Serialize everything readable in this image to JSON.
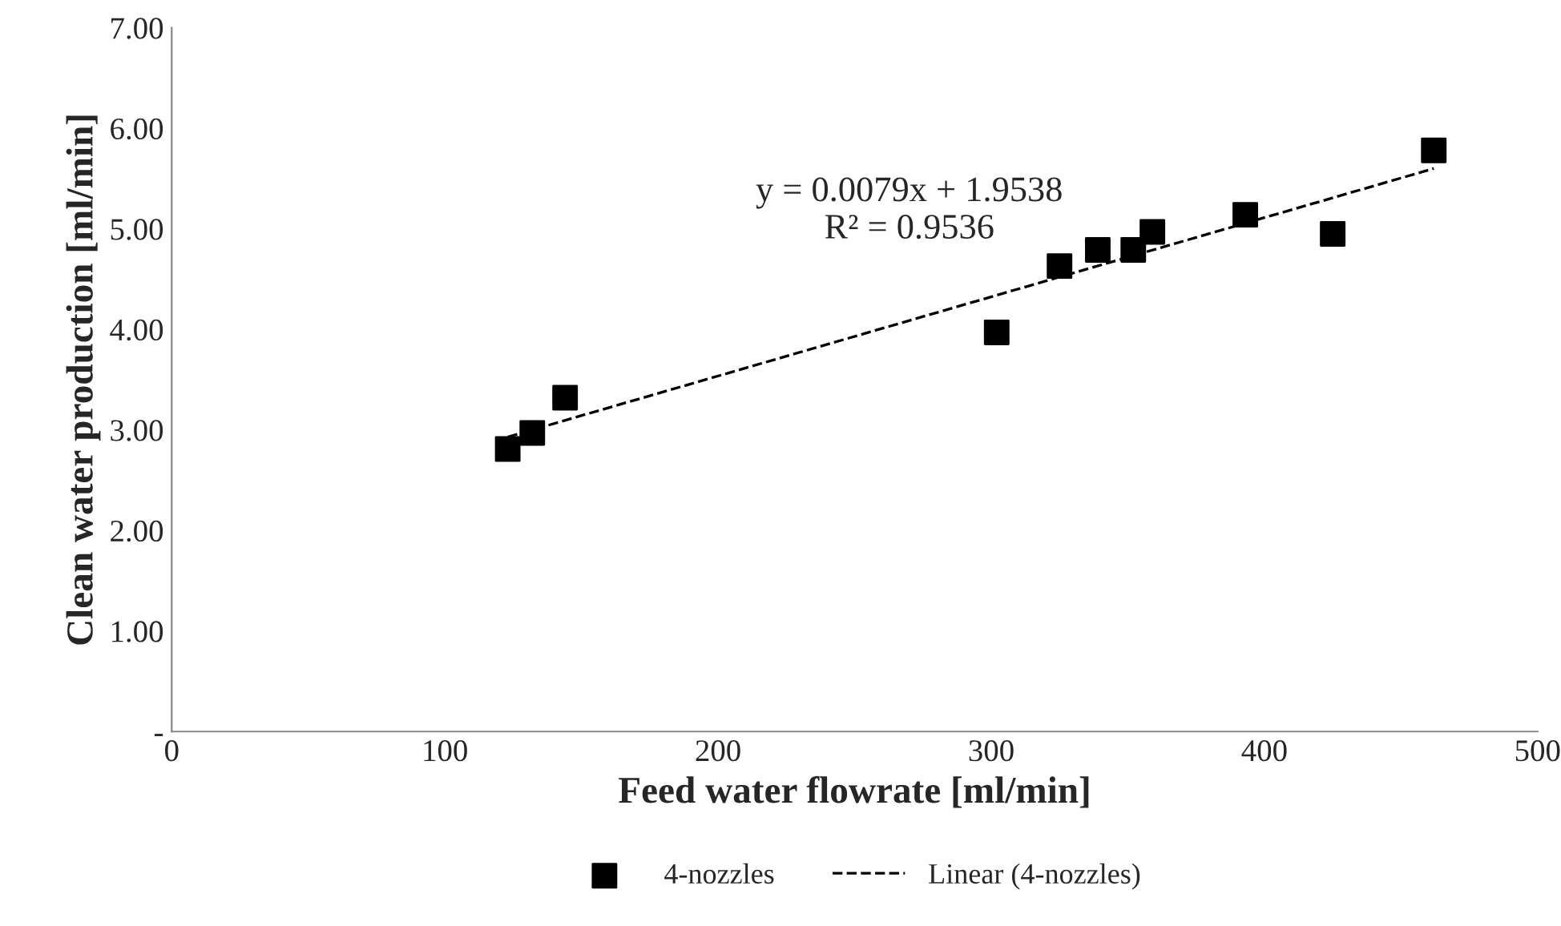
{
  "chart_data": {
    "type": "scatter",
    "xlabel": "Feed water flowrate [ml/min]",
    "ylabel": "Clean water production [ml/min]",
    "series": [
      {
        "name": "4-nozzles",
        "color": "#000000",
        "marker": "square",
        "x": [
          123,
          132,
          144,
          302,
          325,
          339,
          352,
          359,
          393,
          425,
          462
        ],
        "values": [
          2.81,
          2.97,
          3.32,
          3.97,
          4.63,
          4.79,
          4.79,
          4.97,
          5.14,
          4.95,
          5.78
        ]
      },
      {
        "name": "Linear (4-nozzles)",
        "type": "line",
        "color": "#000000",
        "line_style": "dashed",
        "marker": "none",
        "x": [
          123,
          462
        ],
        "values": [
          2.93,
          5.6
        ]
      }
    ],
    "annotations": [
      "y = 0.0079x + 1.9538\nR² = 0.9536"
    ],
    "xlim": [
      0,
      500
    ],
    "xticks": [
      0,
      100,
      200,
      300,
      400,
      500
    ],
    "ylim": [
      0,
      7
    ],
    "yticks": [
      {
        "value": 0,
        "label": "-"
      },
      {
        "value": 1,
        "label": "1.00"
      },
      {
        "value": 2,
        "label": "2.00"
      },
      {
        "value": 3,
        "label": "3.00"
      },
      {
        "value": 4,
        "label": "4.00"
      },
      {
        "value": 5,
        "label": "5.00"
      },
      {
        "value": 6,
        "label": "6.00"
      },
      {
        "value": 7,
        "label": "7.00"
      }
    ],
    "grid": false,
    "legend": "bottom"
  }
}
